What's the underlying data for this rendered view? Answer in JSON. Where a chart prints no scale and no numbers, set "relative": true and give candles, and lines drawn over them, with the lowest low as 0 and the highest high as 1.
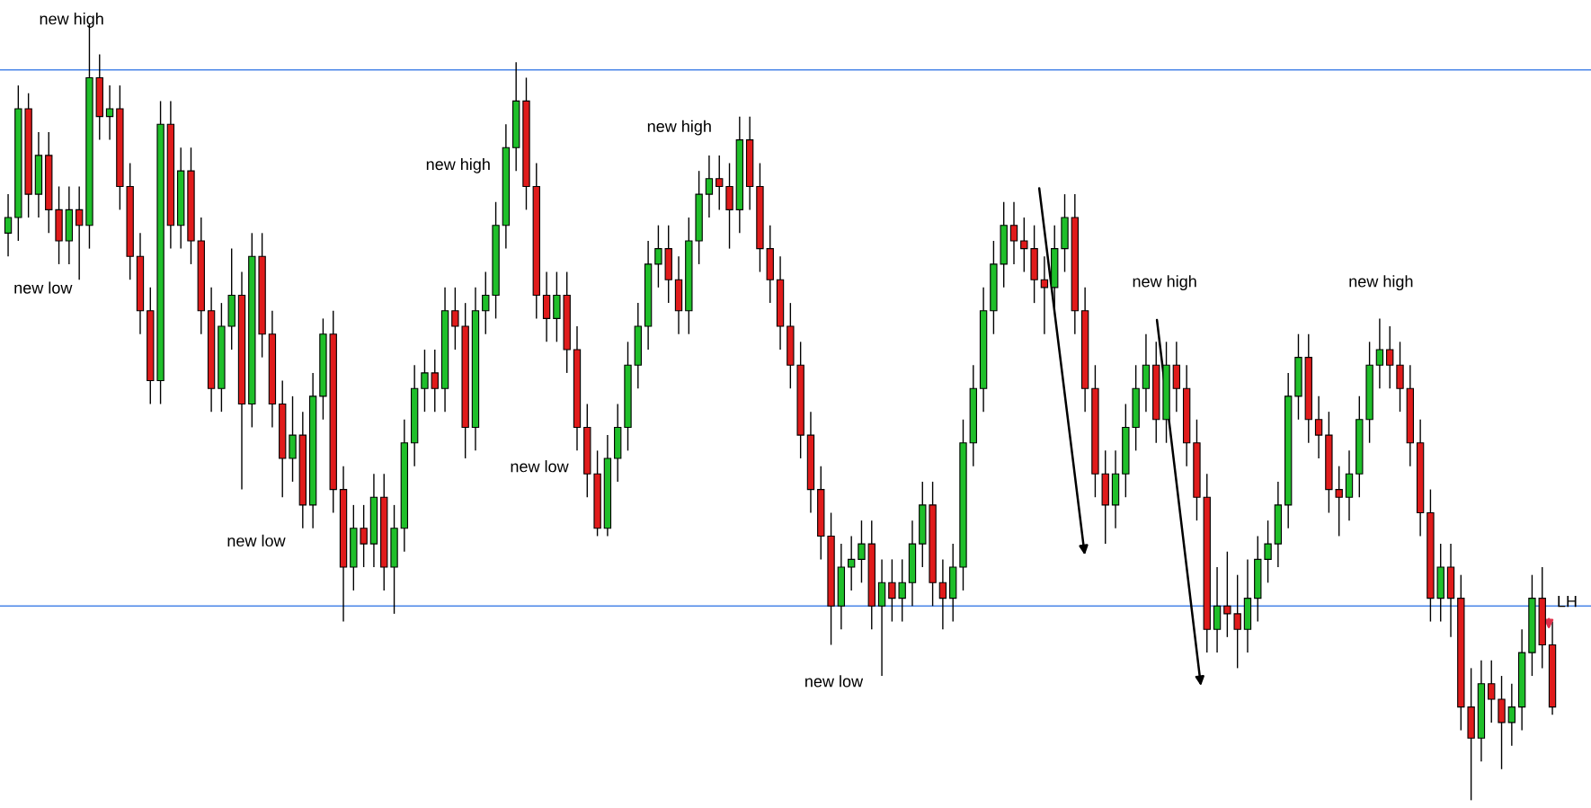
{
  "chart_data": {
    "type": "candlestick",
    "relative": true,
    "categories": [
      null,
      null,
      null,
      null,
      null,
      null,
      null,
      null,
      null,
      null,
      null,
      null,
      null,
      null,
      null,
      null,
      null,
      null,
      null,
      null,
      null,
      null,
      null,
      null,
      null,
      null,
      null,
      null,
      null,
      null,
      null,
      null,
      null,
      null,
      null,
      null,
      null,
      null,
      null,
      null,
      null,
      null,
      null,
      null,
      null,
      null,
      null,
      null,
      null,
      null,
      null,
      null,
      null,
      null,
      null,
      null,
      null,
      null,
      null,
      null,
      null,
      null,
      null,
      null,
      null,
      null,
      null,
      null,
      null,
      null,
      null,
      null,
      null,
      null,
      null,
      null,
      null,
      null,
      null,
      null,
      null,
      null,
      null,
      null,
      null,
      null,
      null,
      null,
      null,
      null,
      null,
      null,
      null,
      null,
      null,
      null,
      null,
      null,
      null,
      null,
      null,
      null,
      null,
      null,
      null,
      null,
      null,
      null,
      null,
      null,
      null,
      null,
      null,
      null,
      null,
      null,
      null,
      null,
      null,
      null,
      null,
      null,
      null,
      null,
      null,
      null,
      null,
      null,
      null,
      null,
      null,
      null,
      null,
      null,
      null,
      null,
      null,
      null,
      null,
      null,
      null,
      null,
      null,
      null,
      null,
      null,
      null,
      null,
      null,
      null,
      null,
      null,
      null
    ],
    "ohlc": [
      [
        0.73,
        0.78,
        0.7,
        0.75
      ],
      [
        0.75,
        0.92,
        0.72,
        0.89
      ],
      [
        0.89,
        0.91,
        0.75,
        0.78
      ],
      [
        0.78,
        0.86,
        0.75,
        0.83
      ],
      [
        0.83,
        0.86,
        0.73,
        0.76
      ],
      [
        0.76,
        0.79,
        0.69,
        0.72
      ],
      [
        0.72,
        0.79,
        0.69,
        0.76
      ],
      [
        0.76,
        0.79,
        0.67,
        0.74
      ],
      [
        0.74,
        1.0,
        0.71,
        0.93
      ],
      [
        0.93,
        0.96,
        0.85,
        0.88
      ],
      [
        0.88,
        0.92,
        0.85,
        0.89
      ],
      [
        0.89,
        0.92,
        0.76,
        0.79
      ],
      [
        0.79,
        0.82,
        0.67,
        0.7
      ],
      [
        0.7,
        0.73,
        0.6,
        0.63
      ],
      [
        0.63,
        0.66,
        0.51,
        0.54
      ],
      [
        0.54,
        0.9,
        0.51,
        0.87
      ],
      [
        0.87,
        0.9,
        0.71,
        0.74
      ],
      [
        0.74,
        0.84,
        0.71,
        0.81
      ],
      [
        0.81,
        0.84,
        0.69,
        0.72
      ],
      [
        0.72,
        0.75,
        0.6,
        0.63
      ],
      [
        0.63,
        0.66,
        0.5,
        0.53
      ],
      [
        0.53,
        0.64,
        0.5,
        0.61
      ],
      [
        0.61,
        0.71,
        0.58,
        0.65
      ],
      [
        0.65,
        0.68,
        0.4,
        0.51
      ],
      [
        0.51,
        0.73,
        0.48,
        0.7
      ],
      [
        0.7,
        0.73,
        0.57,
        0.6
      ],
      [
        0.6,
        0.63,
        0.48,
        0.51
      ],
      [
        0.51,
        0.54,
        0.39,
        0.44
      ],
      [
        0.44,
        0.52,
        0.41,
        0.47
      ],
      [
        0.47,
        0.5,
        0.35,
        0.38
      ],
      [
        0.38,
        0.55,
        0.35,
        0.52
      ],
      [
        0.52,
        0.62,
        0.49,
        0.6
      ],
      [
        0.6,
        0.63,
        0.37,
        0.4
      ],
      [
        0.4,
        0.43,
        0.23,
        0.3
      ],
      [
        0.3,
        0.38,
        0.27,
        0.35
      ],
      [
        0.35,
        0.38,
        0.3,
        0.33
      ],
      [
        0.33,
        0.42,
        0.3,
        0.39
      ],
      [
        0.39,
        0.42,
        0.27,
        0.3
      ],
      [
        0.3,
        0.38,
        0.24,
        0.35
      ],
      [
        0.35,
        0.49,
        0.32,
        0.46
      ],
      [
        0.46,
        0.56,
        0.43,
        0.53
      ],
      [
        0.53,
        0.58,
        0.5,
        0.55
      ],
      [
        0.55,
        0.58,
        0.5,
        0.53
      ],
      [
        0.53,
        0.66,
        0.5,
        0.63
      ],
      [
        0.63,
        0.66,
        0.58,
        0.61
      ],
      [
        0.61,
        0.64,
        0.44,
        0.48
      ],
      [
        0.48,
        0.66,
        0.45,
        0.63
      ],
      [
        0.63,
        0.68,
        0.6,
        0.65
      ],
      [
        0.65,
        0.77,
        0.62,
        0.74
      ],
      [
        0.74,
        0.87,
        0.71,
        0.84
      ],
      [
        0.84,
        0.95,
        0.81,
        0.9
      ],
      [
        0.9,
        0.93,
        0.76,
        0.79
      ],
      [
        0.79,
        0.82,
        0.62,
        0.65
      ],
      [
        0.65,
        0.68,
        0.59,
        0.62
      ],
      [
        0.62,
        0.68,
        0.59,
        0.65
      ],
      [
        0.65,
        0.68,
        0.55,
        0.58
      ],
      [
        0.58,
        0.61,
        0.45,
        0.48
      ],
      [
        0.48,
        0.51,
        0.39,
        0.42
      ],
      [
        0.42,
        0.45,
        0.34,
        0.35
      ],
      [
        0.35,
        0.47,
        0.34,
        0.44
      ],
      [
        0.44,
        0.51,
        0.41,
        0.48
      ],
      [
        0.48,
        0.59,
        0.45,
        0.56
      ],
      [
        0.56,
        0.64,
        0.53,
        0.61
      ],
      [
        0.61,
        0.72,
        0.58,
        0.69
      ],
      [
        0.69,
        0.74,
        0.66,
        0.71
      ],
      [
        0.71,
        0.74,
        0.64,
        0.67
      ],
      [
        0.67,
        0.7,
        0.6,
        0.63
      ],
      [
        0.63,
        0.75,
        0.6,
        0.72
      ],
      [
        0.72,
        0.81,
        0.69,
        0.78
      ],
      [
        0.78,
        0.83,
        0.75,
        0.8
      ],
      [
        0.8,
        0.83,
        0.76,
        0.79
      ],
      [
        0.79,
        0.82,
        0.71,
        0.76
      ],
      [
        0.76,
        0.88,
        0.73,
        0.85
      ],
      [
        0.85,
        0.88,
        0.76,
        0.79
      ],
      [
        0.79,
        0.82,
        0.68,
        0.71
      ],
      [
        0.71,
        0.74,
        0.64,
        0.67
      ],
      [
        0.67,
        0.7,
        0.58,
        0.61
      ],
      [
        0.61,
        0.64,
        0.53,
        0.56
      ],
      [
        0.56,
        0.59,
        0.44,
        0.47
      ],
      [
        0.47,
        0.5,
        0.37,
        0.4
      ],
      [
        0.4,
        0.43,
        0.31,
        0.34
      ],
      [
        0.34,
        0.37,
        0.2,
        0.25
      ],
      [
        0.25,
        0.33,
        0.22,
        0.3
      ],
      [
        0.3,
        0.34,
        0.27,
        0.31
      ],
      [
        0.31,
        0.36,
        0.28,
        0.33
      ],
      [
        0.33,
        0.36,
        0.22,
        0.25
      ],
      [
        0.25,
        0.31,
        0.16,
        0.28
      ],
      [
        0.28,
        0.31,
        0.23,
        0.26
      ],
      [
        0.26,
        0.31,
        0.23,
        0.28
      ],
      [
        0.28,
        0.36,
        0.25,
        0.33
      ],
      [
        0.33,
        0.41,
        0.3,
        0.38
      ],
      [
        0.38,
        0.41,
        0.25,
        0.28
      ],
      [
        0.28,
        0.31,
        0.22,
        0.26
      ],
      [
        0.26,
        0.33,
        0.23,
        0.3
      ],
      [
        0.3,
        0.49,
        0.27,
        0.46
      ],
      [
        0.46,
        0.56,
        0.43,
        0.53
      ],
      [
        0.53,
        0.66,
        0.5,
        0.63
      ],
      [
        0.63,
        0.72,
        0.6,
        0.69
      ],
      [
        0.69,
        0.77,
        0.66,
        0.74
      ],
      [
        0.74,
        0.77,
        0.69,
        0.72
      ],
      [
        0.72,
        0.75,
        0.68,
        0.71
      ],
      [
        0.71,
        0.74,
        0.64,
        0.67
      ],
      [
        0.67,
        0.7,
        0.6,
        0.66
      ],
      [
        0.66,
        0.74,
        0.63,
        0.71
      ],
      [
        0.71,
        0.78,
        0.68,
        0.75
      ],
      [
        0.75,
        0.78,
        0.6,
        0.63
      ],
      [
        0.63,
        0.66,
        0.5,
        0.53
      ],
      [
        0.53,
        0.56,
        0.39,
        0.42
      ],
      [
        0.42,
        0.45,
        0.33,
        0.38
      ],
      [
        0.38,
        0.45,
        0.35,
        0.42
      ],
      [
        0.42,
        0.51,
        0.39,
        0.48
      ],
      [
        0.48,
        0.56,
        0.45,
        0.53
      ],
      [
        0.53,
        0.6,
        0.5,
        0.56
      ],
      [
        0.56,
        0.59,
        0.46,
        0.49
      ],
      [
        0.49,
        0.59,
        0.46,
        0.56
      ],
      [
        0.56,
        0.59,
        0.5,
        0.53
      ],
      [
        0.53,
        0.56,
        0.43,
        0.46
      ],
      [
        0.46,
        0.49,
        0.36,
        0.39
      ],
      [
        0.39,
        0.42,
        0.19,
        0.22
      ],
      [
        0.22,
        0.3,
        0.19,
        0.25
      ],
      [
        0.25,
        0.32,
        0.21,
        0.24
      ],
      [
        0.24,
        0.29,
        0.17,
        0.22
      ],
      [
        0.22,
        0.31,
        0.19,
        0.26
      ],
      [
        0.26,
        0.34,
        0.23,
        0.31
      ],
      [
        0.31,
        0.36,
        0.28,
        0.33
      ],
      [
        0.33,
        0.41,
        0.3,
        0.38
      ],
      [
        0.38,
        0.55,
        0.35,
        0.52
      ],
      [
        0.52,
        0.6,
        0.49,
        0.57
      ],
      [
        0.57,
        0.6,
        0.46,
        0.49
      ],
      [
        0.49,
        0.52,
        0.44,
        0.47
      ],
      [
        0.47,
        0.5,
        0.37,
        0.4
      ],
      [
        0.4,
        0.43,
        0.34,
        0.39
      ],
      [
        0.39,
        0.45,
        0.36,
        0.42
      ],
      [
        0.42,
        0.52,
        0.39,
        0.49
      ],
      [
        0.49,
        0.59,
        0.46,
        0.56
      ],
      [
        0.56,
        0.62,
        0.53,
        0.58
      ],
      [
        0.58,
        0.61,
        0.53,
        0.56
      ],
      [
        0.56,
        0.59,
        0.5,
        0.53
      ],
      [
        0.53,
        0.56,
        0.43,
        0.46
      ],
      [
        0.46,
        0.49,
        0.34,
        0.37
      ],
      [
        0.37,
        0.4,
        0.23,
        0.26
      ],
      [
        0.26,
        0.33,
        0.23,
        0.3
      ],
      [
        0.3,
        0.33,
        0.21,
        0.26
      ],
      [
        0.26,
        0.29,
        0.09,
        0.12
      ],
      [
        0.12,
        0.17,
        0.0,
        0.08
      ],
      [
        0.08,
        0.18,
        0.05,
        0.15
      ],
      [
        0.15,
        0.18,
        0.1,
        0.13
      ],
      [
        0.13,
        0.16,
        0.04,
        0.1
      ],
      [
        0.1,
        0.15,
        0.07,
        0.12
      ],
      [
        0.12,
        0.22,
        0.09,
        0.19
      ],
      [
        0.19,
        0.29,
        0.16,
        0.26
      ],
      [
        0.26,
        0.3,
        0.17,
        0.2
      ],
      [
        0.2,
        0.23,
        0.11,
        0.12
      ]
    ],
    "ref_lines": [
      {
        "axis": "y",
        "value": 0.94,
        "color": "#4a86e8"
      },
      {
        "axis": "y",
        "value": 0.25,
        "color": "#4a86e8"
      }
    ],
    "annotations": [
      "new high",
      "new low",
      "new low",
      "new high",
      "new low",
      "new high",
      "new low",
      "new high",
      "new high",
      "LH"
    ]
  }
}
